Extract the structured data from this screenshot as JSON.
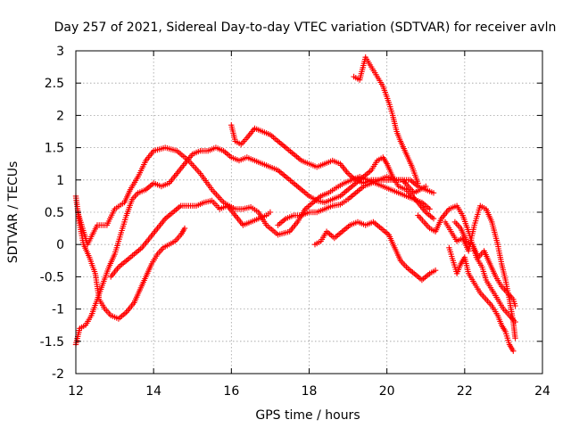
{
  "chart_data": {
    "type": "scatter",
    "title": "Day 257 of 2021, Sidereal Day-to-day VTEC variation (SDTVAR) for receiver avln",
    "xlabel": "GPS time / hours",
    "ylabel": "SDTVAR / TECUs",
    "xlim": [
      12,
      24
    ],
    "ylim": [
      -2,
      3
    ],
    "xticks": [
      12,
      14,
      16,
      18,
      20,
      22,
      24
    ],
    "yticks": [
      -2,
      -1.5,
      -1,
      -0.5,
      0,
      0.5,
      1,
      1.5,
      2,
      2.5,
      3
    ],
    "grid": true,
    "marker": "+",
    "marker_color": "#ff0000",
    "series": [
      {
        "name": "track-1",
        "points": [
          [
            12.05,
            0.5
          ],
          [
            12.3,
            0.0
          ],
          [
            12.55,
            0.3
          ],
          [
            12.8,
            0.3
          ],
          [
            13.0,
            0.55
          ],
          [
            13.25,
            0.65
          ],
          [
            13.4,
            0.85
          ],
          [
            13.6,
            1.05
          ],
          [
            13.8,
            1.3
          ],
          [
            14.0,
            1.45
          ],
          [
            14.3,
            1.5
          ],
          [
            14.6,
            1.45
          ],
          [
            14.9,
            1.3
          ],
          [
            15.2,
            1.1
          ],
          [
            15.5,
            0.85
          ],
          [
            15.8,
            0.65
          ],
          [
            16.1,
            0.55
          ],
          [
            16.3,
            0.55
          ],
          [
            16.5,
            0.58
          ],
          [
            16.7,
            0.5
          ],
          [
            16.9,
            0.3
          ],
          [
            17.2,
            0.15
          ],
          [
            17.5,
            0.2
          ],
          [
            17.7,
            0.35
          ],
          [
            17.9,
            0.55
          ],
          [
            18.1,
            0.65
          ],
          [
            18.3,
            0.75
          ],
          [
            18.5,
            0.8
          ],
          [
            18.7,
            0.88
          ],
          [
            18.9,
            0.95
          ],
          [
            19.1,
            1.0
          ],
          [
            19.3,
            1.05
          ],
          [
            19.5,
            1.0
          ],
          [
            19.7,
            0.95
          ],
          [
            19.9,
            0.9
          ],
          [
            20.1,
            0.85
          ],
          [
            20.3,
            0.8
          ],
          [
            20.5,
            0.75
          ],
          [
            20.7,
            0.7
          ],
          [
            20.9,
            0.65
          ],
          [
            21.1,
            0.55
          ]
        ]
      },
      {
        "name": "track-2",
        "points": [
          [
            12.0,
            -1.55
          ],
          [
            12.1,
            -1.3
          ],
          [
            12.25,
            -1.25
          ],
          [
            12.4,
            -1.1
          ],
          [
            12.55,
            -0.85
          ],
          [
            12.7,
            -0.6
          ],
          [
            12.85,
            -0.35
          ],
          [
            13.0,
            -0.15
          ],
          [
            13.15,
            0.15
          ],
          [
            13.3,
            0.45
          ],
          [
            13.45,
            0.7
          ],
          [
            13.6,
            0.8
          ],
          [
            13.8,
            0.85
          ],
          [
            14.0,
            0.95
          ],
          [
            14.2,
            0.9
          ],
          [
            14.4,
            0.95
          ],
          [
            14.6,
            1.1
          ],
          [
            14.8,
            1.25
          ],
          [
            15.0,
            1.4
          ],
          [
            15.2,
            1.45
          ],
          [
            15.4,
            1.45
          ],
          [
            15.6,
            1.5
          ],
          [
            15.8,
            1.45
          ],
          [
            16.0,
            1.35
          ],
          [
            16.2,
            1.3
          ],
          [
            16.4,
            1.35
          ],
          [
            16.6,
            1.3
          ],
          [
            16.8,
            1.25
          ],
          [
            17.0,
            1.2
          ],
          [
            17.2,
            1.15
          ],
          [
            17.4,
            1.05
          ],
          [
            17.6,
            0.95
          ],
          [
            17.8,
            0.85
          ],
          [
            18.0,
            0.75
          ],
          [
            18.2,
            0.68
          ],
          [
            18.4,
            0.65
          ],
          [
            18.6,
            0.7
          ],
          [
            18.8,
            0.75
          ],
          [
            19.0,
            0.85
          ],
          [
            19.2,
            0.95
          ],
          [
            19.4,
            1.05
          ],
          [
            19.6,
            1.15
          ],
          [
            19.75,
            1.3
          ],
          [
            19.9,
            1.35
          ],
          [
            20.0,
            1.25
          ],
          [
            20.15,
            1.05
          ],
          [
            20.3,
            0.9
          ],
          [
            20.5,
            0.85
          ],
          [
            20.65,
            0.75
          ],
          [
            20.8,
            0.65
          ],
          [
            21.0,
            0.5
          ],
          [
            21.2,
            0.4
          ]
        ]
      },
      {
        "name": "track-3",
        "points": [
          [
            12.0,
            0.75
          ],
          [
            12.1,
            0.3
          ],
          [
            12.2,
            0.0
          ],
          [
            12.35,
            -0.2
          ],
          [
            12.5,
            -0.45
          ],
          [
            12.6,
            -0.85
          ],
          [
            12.75,
            -1.0
          ],
          [
            12.9,
            -1.1
          ],
          [
            13.1,
            -1.15
          ],
          [
            13.3,
            -1.05
          ],
          [
            13.5,
            -0.9
          ],
          [
            13.65,
            -0.7
          ],
          [
            13.8,
            -0.5
          ],
          [
            13.95,
            -0.3
          ],
          [
            14.1,
            -0.15
          ],
          [
            14.25,
            -0.05
          ],
          [
            14.4,
            0.0
          ],
          [
            14.55,
            0.05
          ],
          [
            14.7,
            0.15
          ],
          [
            14.8,
            0.25
          ]
        ]
      },
      {
        "name": "track-4",
        "points": [
          [
            12.9,
            -0.5
          ],
          [
            13.1,
            -0.35
          ],
          [
            13.3,
            -0.25
          ],
          [
            13.5,
            -0.15
          ],
          [
            13.7,
            -0.05
          ],
          [
            13.9,
            0.1
          ],
          [
            14.1,
            0.25
          ],
          [
            14.3,
            0.4
          ],
          [
            14.5,
            0.5
          ],
          [
            14.7,
            0.6
          ],
          [
            14.9,
            0.6
          ],
          [
            15.1,
            0.6
          ],
          [
            15.3,
            0.65
          ],
          [
            15.5,
            0.68
          ],
          [
            15.7,
            0.55
          ],
          [
            15.9,
            0.6
          ],
          [
            16.1,
            0.45
          ],
          [
            16.3,
            0.3
          ],
          [
            16.5,
            0.35
          ],
          [
            16.7,
            0.4
          ],
          [
            16.9,
            0.45
          ],
          [
            17.0,
            0.5
          ]
        ]
      },
      {
        "name": "track-5",
        "points": [
          [
            16.0,
            1.85
          ],
          [
            16.1,
            1.6
          ],
          [
            16.25,
            1.55
          ],
          [
            16.4,
            1.65
          ],
          [
            16.6,
            1.8
          ],
          [
            16.8,
            1.75
          ],
          [
            17.0,
            1.7
          ],
          [
            17.2,
            1.6
          ],
          [
            17.4,
            1.5
          ],
          [
            17.6,
            1.4
          ],
          [
            17.8,
            1.3
          ],
          [
            18.0,
            1.25
          ],
          [
            18.2,
            1.2
          ],
          [
            18.4,
            1.25
          ],
          [
            18.6,
            1.3
          ],
          [
            18.8,
            1.25
          ],
          [
            19.0,
            1.1
          ],
          [
            19.2,
            1.0
          ],
          [
            19.4,
            0.95
          ],
          [
            19.6,
            1.0
          ],
          [
            19.8,
            1.0
          ],
          [
            20.0,
            1.0
          ],
          [
            20.2,
            1.0
          ],
          [
            20.4,
            1.0
          ],
          [
            20.6,
            1.0
          ],
          [
            20.8,
            0.9
          ],
          [
            21.0,
            0.85
          ],
          [
            21.2,
            0.8
          ]
        ]
      },
      {
        "name": "track-6",
        "points": [
          [
            17.2,
            0.3
          ],
          [
            17.4,
            0.4
          ],
          [
            17.6,
            0.45
          ],
          [
            17.8,
            0.45
          ],
          [
            18.0,
            0.5
          ],
          [
            18.2,
            0.5
          ],
          [
            18.4,
            0.55
          ],
          [
            18.6,
            0.6
          ],
          [
            18.8,
            0.62
          ],
          [
            19.0,
            0.7
          ],
          [
            19.2,
            0.8
          ],
          [
            19.4,
            0.9
          ],
          [
            19.6,
            0.95
          ],
          [
            19.8,
            1.0
          ],
          [
            20.0,
            1.05
          ],
          [
            20.2,
            1.0
          ],
          [
            20.4,
            1.0
          ],
          [
            20.55,
            0.9
          ],
          [
            20.7,
            0.8
          ],
          [
            20.85,
            0.85
          ],
          [
            21.0,
            0.9
          ]
        ]
      },
      {
        "name": "track-7",
        "points": [
          [
            18.15,
            0.0
          ],
          [
            18.3,
            0.05
          ],
          [
            18.45,
            0.2
          ],
          [
            18.65,
            0.1
          ],
          [
            18.85,
            0.2
          ],
          [
            19.05,
            0.3
          ],
          [
            19.25,
            0.35
          ],
          [
            19.45,
            0.3
          ],
          [
            19.65,
            0.35
          ],
          [
            19.85,
            0.25
          ],
          [
            20.05,
            0.15
          ],
          [
            20.2,
            -0.05
          ],
          [
            20.35,
            -0.25
          ],
          [
            20.5,
            -0.35
          ],
          [
            20.7,
            -0.45
          ],
          [
            20.9,
            -0.55
          ],
          [
            21.1,
            -0.45
          ],
          [
            21.25,
            -0.4
          ]
        ]
      },
      {
        "name": "track-8",
        "points": [
          [
            19.15,
            2.6
          ],
          [
            19.3,
            2.55
          ],
          [
            19.45,
            2.9
          ],
          [
            19.6,
            2.75
          ],
          [
            19.75,
            2.6
          ],
          [
            19.9,
            2.45
          ],
          [
            20.05,
            2.2
          ],
          [
            20.15,
            2.0
          ],
          [
            20.25,
            1.75
          ],
          [
            20.35,
            1.6
          ],
          [
            20.5,
            1.4
          ],
          [
            20.65,
            1.2
          ],
          [
            20.8,
            0.95
          ]
        ]
      },
      {
        "name": "track-9",
        "points": [
          [
            20.8,
            0.45
          ],
          [
            20.95,
            0.35
          ],
          [
            21.1,
            0.25
          ],
          [
            21.25,
            0.2
          ],
          [
            21.4,
            0.4
          ],
          [
            21.6,
            0.55
          ],
          [
            21.8,
            0.6
          ],
          [
            21.95,
            0.45
          ],
          [
            22.1,
            0.2
          ],
          [
            22.2,
            0.0
          ],
          [
            22.3,
            -0.2
          ],
          [
            22.45,
            -0.35
          ],
          [
            22.55,
            -0.55
          ],
          [
            22.7,
            -0.7
          ],
          [
            22.85,
            -0.85
          ],
          [
            23.0,
            -1.0
          ],
          [
            23.15,
            -1.1
          ],
          [
            23.3,
            -1.2
          ]
        ]
      },
      {
        "name": "track-10",
        "points": [
          [
            21.5,
            0.35
          ],
          [
            21.65,
            0.2
          ],
          [
            21.8,
            0.05
          ],
          [
            21.95,
            0.1
          ],
          [
            22.1,
            -0.1
          ],
          [
            22.25,
            0.3
          ],
          [
            22.4,
            0.6
          ],
          [
            22.55,
            0.55
          ],
          [
            22.7,
            0.35
          ],
          [
            22.85,
            0.0
          ],
          [
            22.95,
            -0.3
          ],
          [
            23.05,
            -0.55
          ],
          [
            23.15,
            -0.85
          ],
          [
            23.25,
            -1.2
          ],
          [
            23.3,
            -1.45
          ]
        ]
      },
      {
        "name": "track-11",
        "points": [
          [
            21.6,
            -0.05
          ],
          [
            21.7,
            -0.25
          ],
          [
            21.8,
            -0.45
          ],
          [
            21.9,
            -0.3
          ],
          [
            22.0,
            -0.2
          ],
          [
            22.1,
            -0.45
          ],
          [
            22.25,
            -0.6
          ],
          [
            22.4,
            -0.75
          ],
          [
            22.55,
            -0.85
          ],
          [
            22.7,
            -0.95
          ],
          [
            22.85,
            -1.1
          ],
          [
            22.95,
            -1.25
          ],
          [
            23.05,
            -1.35
          ],
          [
            23.15,
            -1.55
          ],
          [
            23.25,
            -1.65
          ]
        ]
      },
      {
        "name": "track-12",
        "points": [
          [
            21.75,
            0.35
          ],
          [
            21.9,
            0.25
          ],
          [
            22.05,
            0.05
          ],
          [
            22.2,
            0.0
          ],
          [
            22.35,
            -0.2
          ],
          [
            22.5,
            -0.1
          ],
          [
            22.65,
            -0.3
          ],
          [
            22.8,
            -0.5
          ],
          [
            22.95,
            -0.65
          ],
          [
            23.1,
            -0.75
          ],
          [
            23.25,
            -0.85
          ],
          [
            23.3,
            -0.95
          ]
        ]
      }
    ]
  }
}
